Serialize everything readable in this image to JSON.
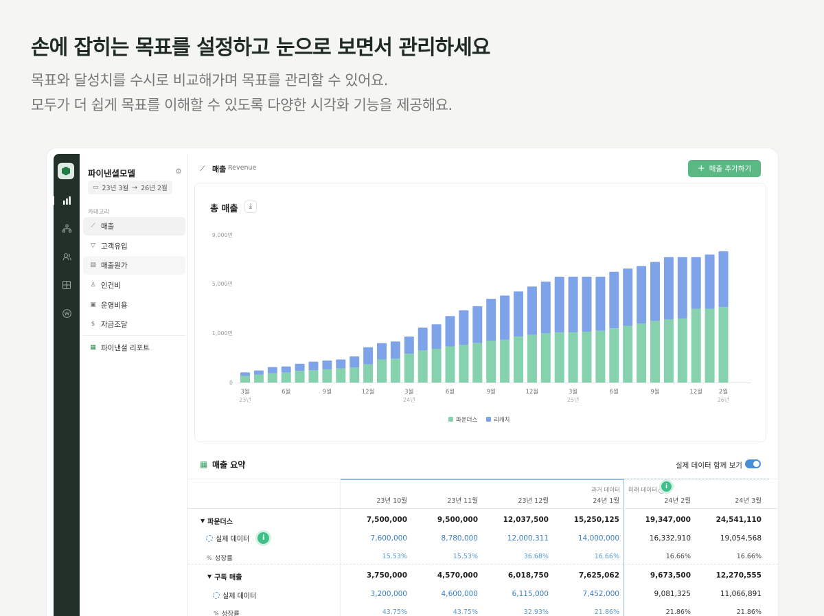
{
  "hero": {
    "title": "손에 잡히는 목표를 설정하고  눈으로 보면서 관리하세요",
    "subtitle_line1": "목표와 달성치를 수시로 비교해가며 목표를 관리할 수 있어요.",
    "subtitle_line2": "모두가 더 쉽게 목표를 이해할 수 있도록 다양한 시각화 기능을 제공해요."
  },
  "rail": {
    "icons": [
      "logo-icon",
      "bar-chart-icon",
      "org-chart-icon",
      "users-icon",
      "calculator-icon",
      "won-icon"
    ]
  },
  "sidebar": {
    "model_name": "파이낸셜모델",
    "date_from": "23년 3월",
    "date_arrow": "→",
    "date_to": "26년 2월",
    "category_label": "카테고리",
    "items": [
      {
        "label": "매출",
        "icon": "line-chart-icon"
      },
      {
        "label": "고객유입",
        "icon": "funnel-icon"
      },
      {
        "label": "매출원가",
        "icon": "receipt-icon"
      },
      {
        "label": "인건비",
        "icon": "person-icon"
      },
      {
        "label": "운영비용",
        "icon": "doc-icon"
      },
      {
        "label": "자금조달",
        "icon": "dollar-icon"
      }
    ],
    "report_label": "파이낸셜 리포트"
  },
  "topbar": {
    "title": "매출",
    "subtitle": "Revenue",
    "add_button": "매출 추가하기"
  },
  "chart_card": {
    "title": "총 매출"
  },
  "chart_data": {
    "type": "bar",
    "stacked": true,
    "y_tick_labels": [
      "9,000만",
      "5,000만",
      "1,000만",
      "0"
    ],
    "x_tick_labels": [
      "3월",
      "6월",
      "9월",
      "12월",
      "3월",
      "6월",
      "9월",
      "12월",
      "3월",
      "6월",
      "9월",
      "12월",
      "2월"
    ],
    "x_year_labels": [
      "23년",
      "24년",
      "25년",
      "26년"
    ],
    "categories": [
      "23-03",
      "23-04",
      "23-05",
      "23-06",
      "23-07",
      "23-08",
      "23-09",
      "23-10",
      "23-11",
      "23-12",
      "24-01",
      "24-02",
      "24-03",
      "24-04",
      "24-05",
      "24-06",
      "24-07",
      "24-08",
      "24-09",
      "24-10",
      "24-11",
      "24-12",
      "25-01",
      "25-02",
      "25-03",
      "25-04",
      "25-05",
      "25-06",
      "25-07",
      "25-08",
      "25-09",
      "25-10",
      "25-11",
      "25-12",
      "26-01",
      "26-02"
    ],
    "series": [
      {
        "name": "파운더스",
        "color": "#86d1ae",
        "values": [
          400,
          480,
          560,
          600,
          700,
          750,
          800,
          850,
          920,
          1100,
          1400,
          1450,
          1750,
          1950,
          2050,
          2200,
          2300,
          2400,
          2550,
          2600,
          2800,
          2900,
          3000,
          3050,
          3050,
          3100,
          3150,
          3300,
          3450,
          3600,
          3750,
          3850,
          3900,
          4500,
          4500,
          4600
        ]
      },
      {
        "name": "리캐치",
        "color": "#7fa3e8",
        "values": [
          220,
          250,
          380,
          380,
          440,
          520,
          540,
          550,
          670,
          1050,
          1000,
          1050,
          1050,
          1400,
          1500,
          1850,
          2100,
          2250,
          2550,
          2700,
          2750,
          2950,
          3150,
          3400,
          3400,
          3350,
          3300,
          3450,
          3500,
          3500,
          3600,
          3800,
          3750,
          3150,
          3300,
          3400
        ]
      }
    ],
    "legend": "bottom-center",
    "grid": false
  },
  "summary": {
    "title": "매출 요약",
    "toggle_label": "실제 데이터 함께 보기",
    "toggle_on": true,
    "past_tag": "과거 데이터",
    "future_tag": "미래 데이터",
    "columns": [
      "23년 10월",
      "23년 11월",
      "23년 12월",
      "24년 1월",
      "24년 2월",
      "24년 3월"
    ],
    "rows": [
      {
        "kind": "group",
        "label": "파운더스",
        "values": [
          "7,500,000",
          "9,500,000",
          "12,037,500",
          "15,250,125",
          "19,347,000",
          "24,541,110"
        ]
      },
      {
        "kind": "actual",
        "label": "실제 데이터",
        "values": [
          "7,600,000",
          "8,780,000",
          "12,000,311",
          "14,000,000",
          "16,332,910",
          "19,054,568"
        ]
      },
      {
        "kind": "growth",
        "label": "성장률",
        "values": [
          "15.53%",
          "15.53%",
          "36.68%",
          "16.66%",
          "16.66%",
          "16.66%"
        ]
      },
      {
        "kind": "group",
        "label": "구독 매출",
        "values": [
          "3,750,000",
          "4,570,000",
          "6,018,750",
          "7,625,062",
          "9,673,500",
          "12,270,555"
        ]
      },
      {
        "kind": "actual",
        "label": "실제 데이터",
        "values": [
          "3,200,000",
          "4,600,000",
          "6,115,000",
          "7,452,000",
          "9,081,325",
          "11,066,891"
        ]
      },
      {
        "kind": "growth",
        "label": "성장률",
        "values": [
          "43.75%",
          "43.75%",
          "32.93%",
          "21.86%",
          "21.86%",
          "21.86%"
        ]
      }
    ]
  }
}
